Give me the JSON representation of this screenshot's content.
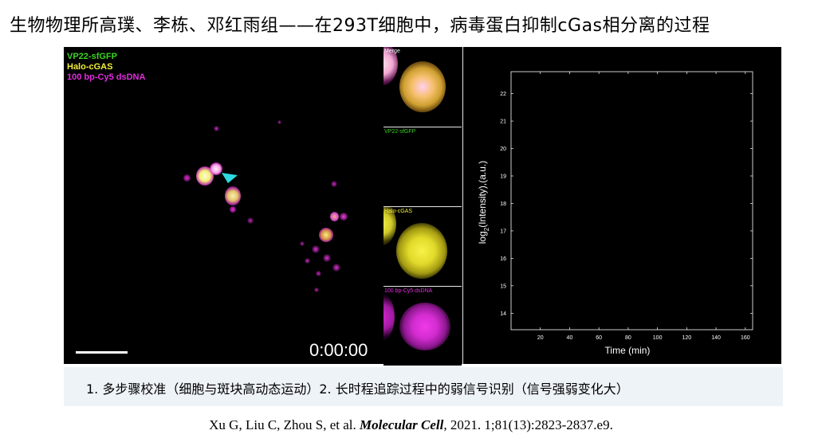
{
  "title": "生物物理所高璞、李栋、邓红雨组——在293T细胞中，病毒蛋白抑制cGas相分离的过程",
  "main_panel": {
    "legend": [
      {
        "label": "VP22-sfGFP",
        "color": "#39d41f"
      },
      {
        "label": "Halo-cGAS",
        "color": "#f2ee3a"
      },
      {
        "label": "100 bp-Cy5 dsDNA",
        "color": "#e22ce0"
      }
    ],
    "timestamp": "0:00:00",
    "arrow_color": "#2fd8e0"
  },
  "insets": [
    {
      "label": "Merge",
      "label_color": "#ffffff"
    },
    {
      "label": "VP22-sfGFP",
      "label_color": "#39d41f"
    },
    {
      "label": "Halo-cGAS",
      "label_color": "#f2ee3a"
    },
    {
      "label": "100 bp-Cy5 dsDNA",
      "label_color": "#e22ce0"
    }
  ],
  "chart_data": {
    "type": "line",
    "xlabel": "Time (min)",
    "ylabel_base": "log",
    "ylabel_sub": "2",
    "ylabel_rest": "(Intensity),(a.u.)",
    "x_ticks": [
      20,
      40,
      60,
      80,
      100,
      120,
      140,
      160
    ],
    "y_ticks": [
      14,
      15,
      16,
      17,
      18,
      19,
      20,
      21,
      22
    ],
    "xlim": [
      0,
      165
    ],
    "ylim": [
      13.4,
      22.8
    ],
    "series": [],
    "grid": false
  },
  "caption": "1. 多步骤校准（细胞与斑块高动态运动）2. 长时程追踪过程中的弱信号识别（信号强弱变化大）",
  "citation": {
    "authors": "Xu G, Liu C, Zhou S, et al. ",
    "journal": "Molecular Cell",
    "details": ", 2021. 1;81(13):2823-2837.e9."
  }
}
